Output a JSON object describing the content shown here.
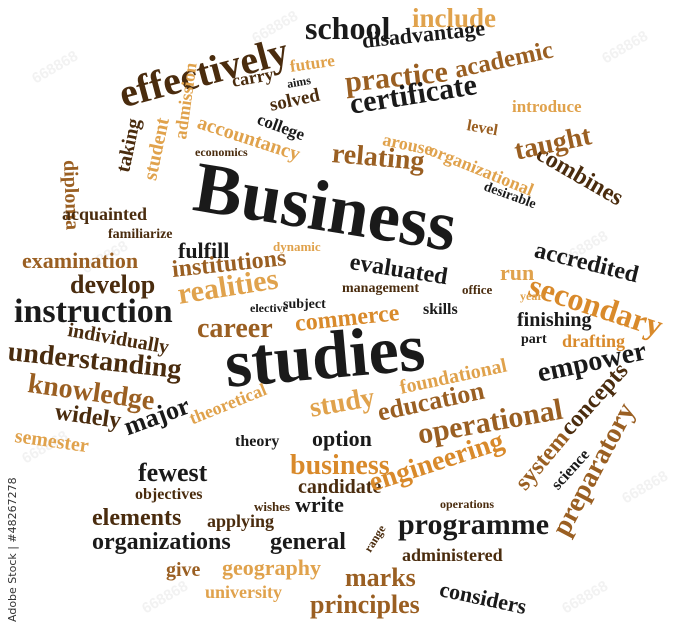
{
  "watermark_text": "668868",
  "stock_id": "Adobe Stock | #48267278",
  "colors": {
    "black": "#1a1a1a",
    "dark_brown": "#4a2c0e",
    "brown": "#9a5f22",
    "light_orange": "#e0a24c",
    "orange": "#d98a2b"
  },
  "words": {
    "school": "school",
    "include": "include",
    "effectively": "effectively",
    "disadvantage": "disadvantage",
    "carry": "carry",
    "aims": "aims",
    "future": "future",
    "academic": "academic",
    "practice": "practice",
    "solved": "solved",
    "admission": "admission",
    "certificate": "certificate",
    "accountancy": "accountancy",
    "college": "college",
    "introduce": "introduce",
    "diploma": "diploma",
    "level": "level",
    "combines": "combines",
    "arouse": "arouse",
    "organizational": "organizational",
    "economics": "economics",
    "taking": "taking",
    "student": "student",
    "relating": "relating",
    "taught": "taught",
    "desirable": "desirable",
    "business_title": "Business",
    "acquainted": "acquainted",
    "familiarize": "familiarize",
    "accredited": "accredited",
    "fulfill": "fulfill",
    "dynamic": "dynamic",
    "examination": "examination",
    "evaluated": "evaluated",
    "secondary": "secondary",
    "institutions": "institutions",
    "run": "run",
    "develop": "develop",
    "realities": "realities",
    "management": "management",
    "office": "office",
    "year": "year",
    "elective": "elective",
    "subject": "subject",
    "instruction": "instruction",
    "career": "career",
    "commerce": "commerce",
    "skills": "skills",
    "finishing": "finishing",
    "individually": "individually",
    "studies": "studies",
    "part": "part",
    "drafting": "drafting",
    "understanding": "understanding",
    "knowledge": "knowledge",
    "empower": "empower",
    "foundational": "foundational",
    "widely": "widely",
    "theoretical": "theoretical",
    "study": "study",
    "major": "major",
    "education": "education",
    "semester": "semester",
    "concepts": "concepts",
    "theory": "theory",
    "option": "option",
    "operational": "operational",
    "system": "system",
    "fewest": "fewest",
    "business": "business",
    "science": "science",
    "candidate": "candidate",
    "engineering": "engineering",
    "preparatory": "preparatory",
    "objectives": "objectives",
    "wishes": "wishes",
    "write": "write",
    "elements": "elements",
    "operations": "operations",
    "applying": "applying",
    "programme": "programme",
    "organizations": "organizations",
    "general": "general",
    "range": "range",
    "administered": "administered",
    "give": "give",
    "geography": "geography",
    "marks": "marks",
    "considers": "considers",
    "university": "university",
    "principles": "principles"
  }
}
